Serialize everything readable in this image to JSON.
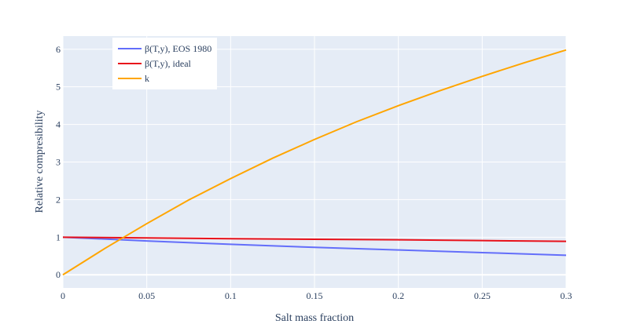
{
  "chart_data": {
    "type": "line",
    "xlabel": "Salt mass fraction",
    "ylabel": "Relative compresibility",
    "xlim": [
      0,
      0.3
    ],
    "ylim": [
      -0.35,
      6.35
    ],
    "x_ticks": [
      0,
      0.05,
      0.1,
      0.15,
      0.2,
      0.25,
      0.3
    ],
    "x_tick_labels": [
      "0",
      "0.05",
      "0.1",
      "0.15",
      "0.2",
      "0.25",
      "0.3"
    ],
    "y_ticks": [
      0,
      1,
      2,
      3,
      4,
      5,
      6
    ],
    "y_tick_labels": [
      "0",
      "1",
      "2",
      "3",
      "4",
      "5",
      "6"
    ],
    "grid": true,
    "legend_position": "top-left",
    "background": "#e5ecf6",
    "series": [
      {
        "name": "β(T,y), EOS 1980",
        "color": "#636efa",
        "x": [
          0,
          0.05,
          0.1,
          0.15,
          0.2,
          0.25,
          0.3
        ],
        "y": [
          1.0,
          0.9,
          0.81,
          0.73,
          0.66,
          0.59,
          0.52
        ]
      },
      {
        "name": "β(T,y), ideal",
        "color": "#e8111a",
        "x": [
          0,
          0.05,
          0.1,
          0.15,
          0.2,
          0.25,
          0.3
        ],
        "y": [
          1.0,
          0.98,
          0.96,
          0.945,
          0.93,
          0.91,
          0.89
        ]
      },
      {
        "name": "k",
        "color": "#ffa500",
        "x": [
          0,
          0.025,
          0.05,
          0.075,
          0.1,
          0.125,
          0.15,
          0.175,
          0.2,
          0.225,
          0.25,
          0.275,
          0.3
        ],
        "y": [
          0,
          0.7,
          1.36,
          1.99,
          2.56,
          3.1,
          3.6,
          4.07,
          4.5,
          4.9,
          5.28,
          5.64,
          5.98
        ]
      }
    ]
  }
}
